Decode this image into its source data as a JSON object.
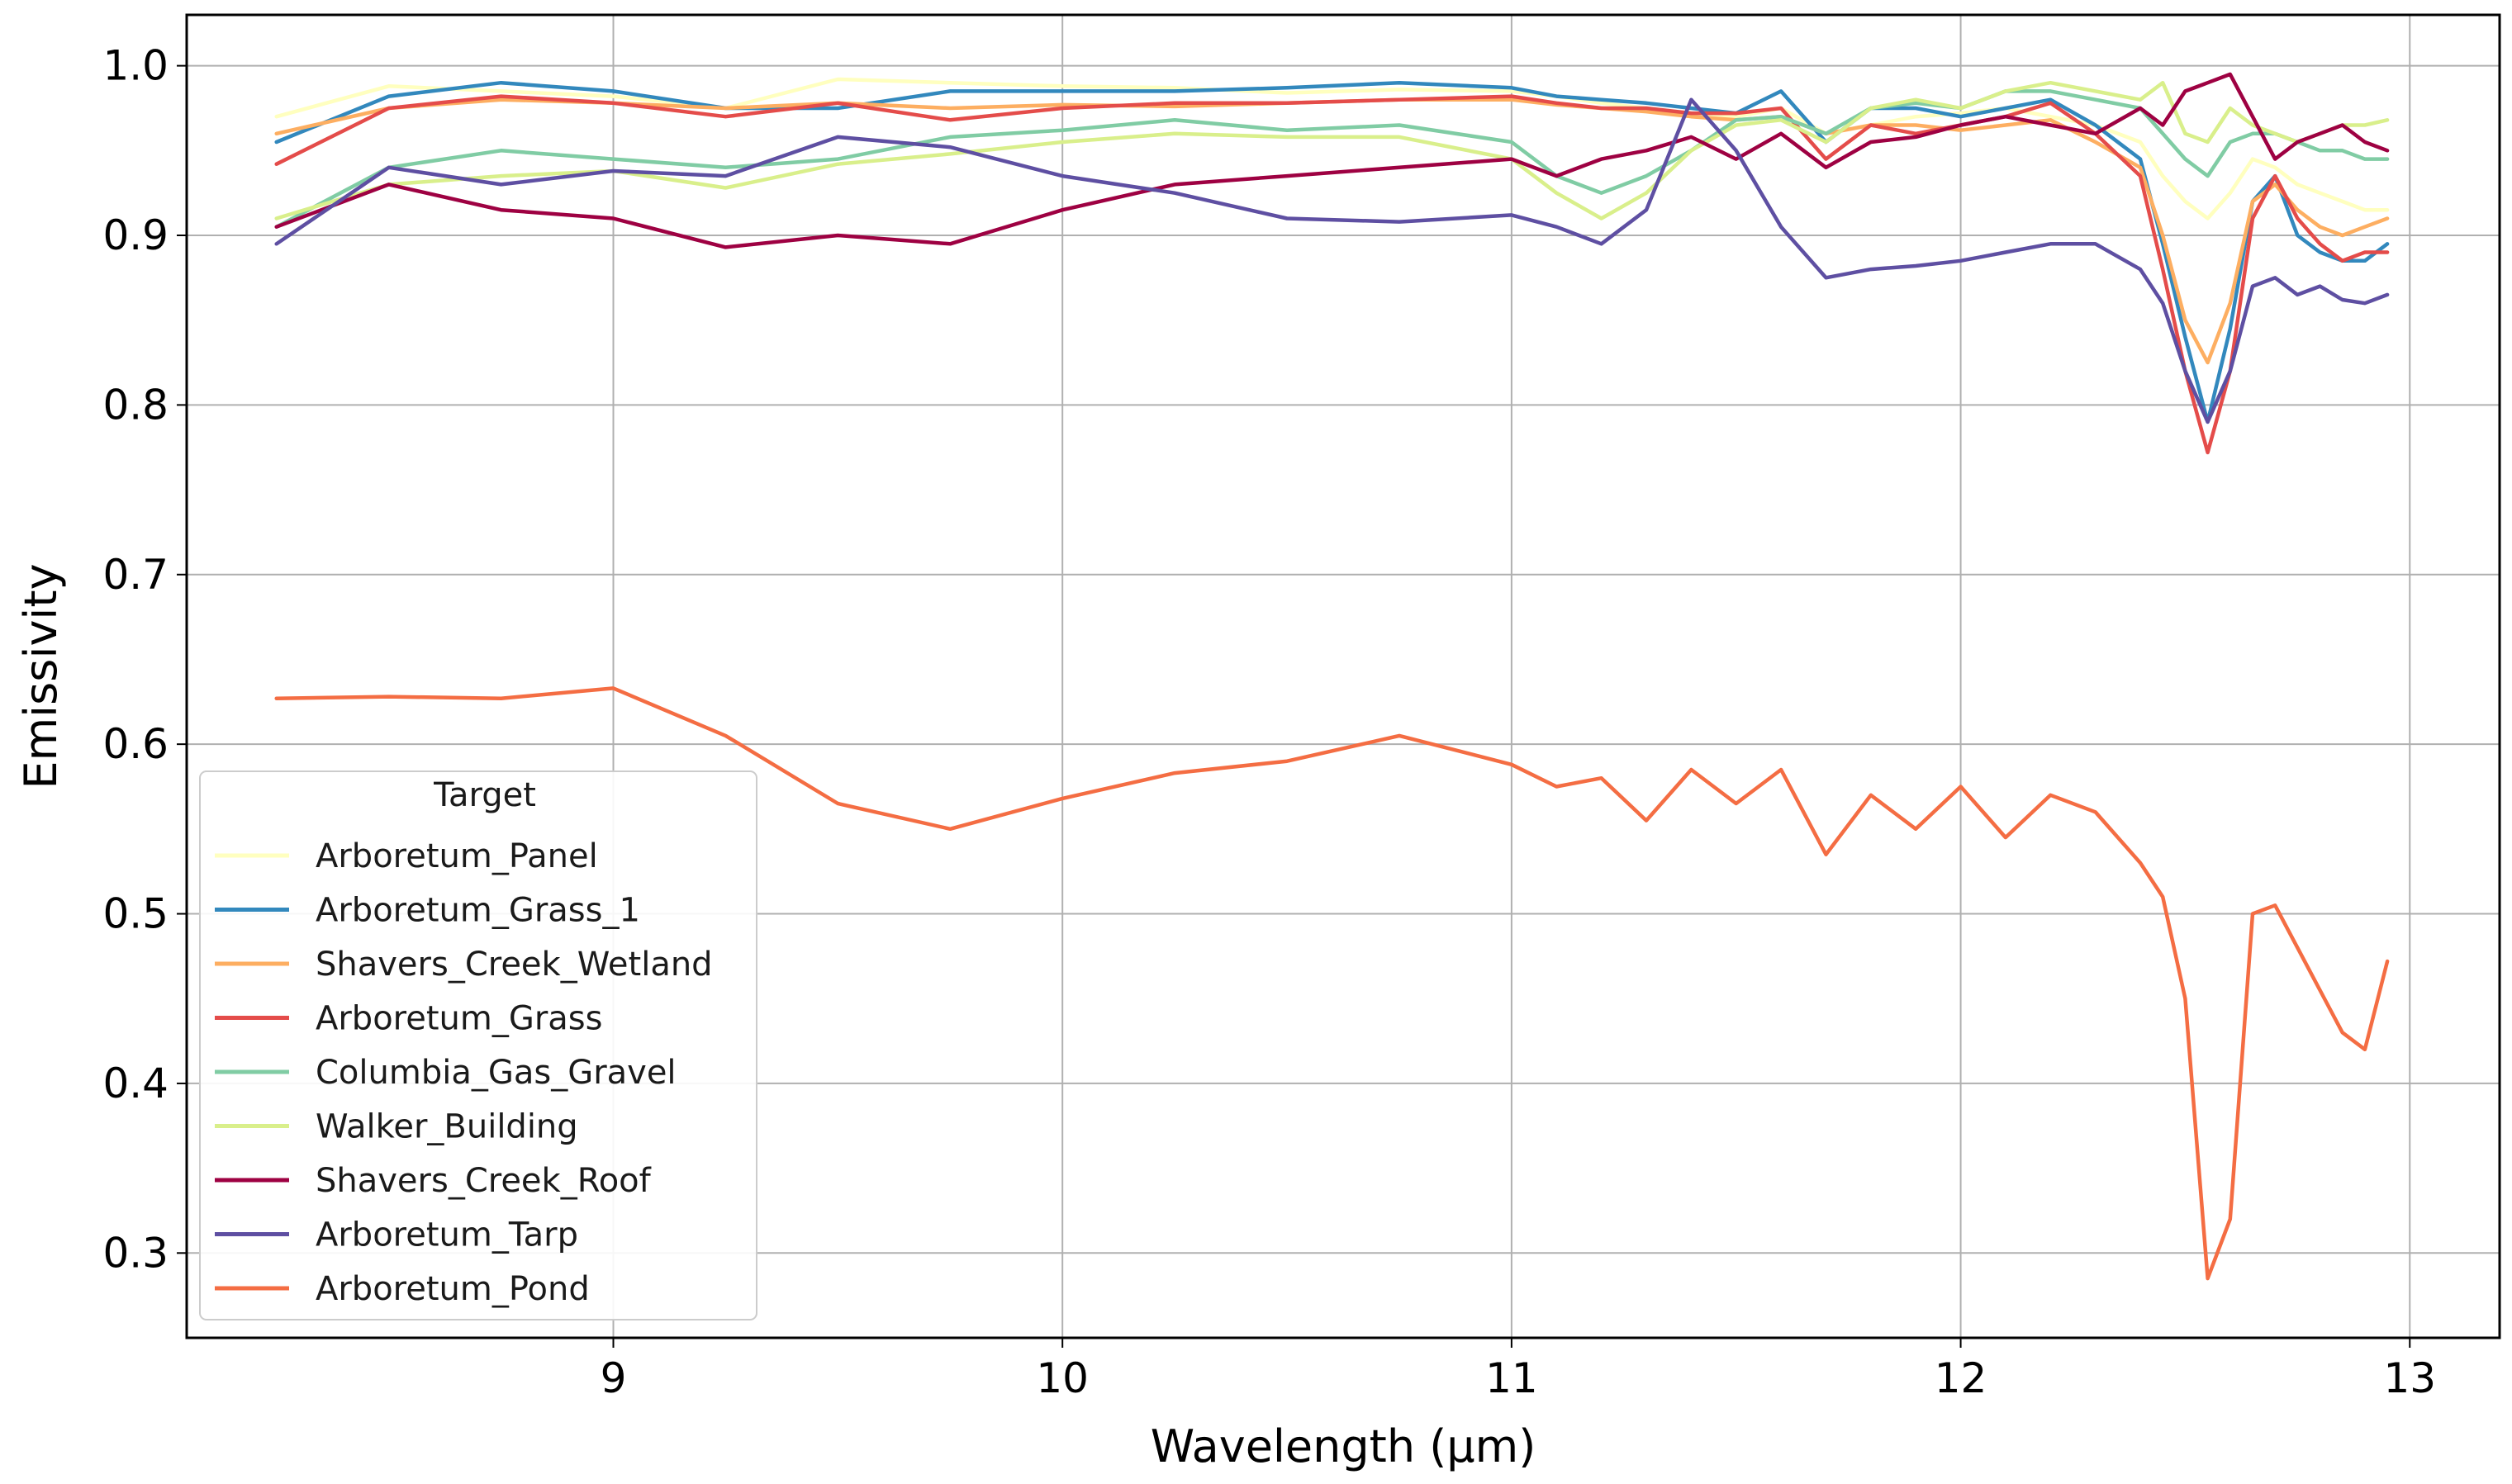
{
  "chart_data": {
    "type": "line",
    "title": "",
    "xlabel": "Wavelength (µm)",
    "ylabel": "Emissivity",
    "xlim": [
      8.05,
      13.2
    ],
    "ylim": [
      0.25,
      1.03
    ],
    "xticks": [
      9,
      10,
      11,
      12,
      13
    ],
    "yticks": [
      0.3,
      0.4,
      0.5,
      0.6,
      0.7,
      0.8,
      0.9,
      1.0
    ],
    "xtick_labels": [
      "9",
      "10",
      "11",
      "12",
      "13"
    ],
    "ytick_labels": [
      "0.3",
      "0.4",
      "0.5",
      "0.6",
      "0.7",
      "0.8",
      "0.9",
      "1.0"
    ],
    "grid": true,
    "legend": {
      "title": "Target",
      "location": "lower-left"
    },
    "x": [
      8.25,
      8.5,
      8.75,
      9.0,
      9.25,
      9.5,
      9.75,
      10.0,
      10.25,
      10.5,
      10.75,
      11.0,
      11.1,
      11.2,
      11.3,
      11.4,
      11.5,
      11.6,
      11.7,
      11.8,
      11.9,
      12.0,
      12.1,
      12.2,
      12.3,
      12.4,
      12.45,
      12.5,
      12.55,
      12.6,
      12.65,
      12.7,
      12.75,
      12.8,
      12.85,
      12.9,
      12.95
    ],
    "series": [
      {
        "name": "Arboretum_Panel",
        "color": "#ffffbf",
        "values": [
          0.97,
          0.988,
          0.985,
          0.982,
          0.975,
          0.992,
          0.99,
          0.988,
          0.987,
          0.984,
          0.986,
          0.985,
          0.982,
          0.978,
          0.975,
          0.972,
          0.97,
          0.975,
          0.96,
          0.965,
          0.97,
          0.972,
          0.975,
          0.97,
          0.965,
          0.955,
          0.935,
          0.92,
          0.91,
          0.925,
          0.945,
          0.94,
          0.93,
          0.925,
          0.92,
          0.915,
          0.915
        ]
      },
      {
        "name": "Arboretum_Grass_1",
        "color": "#3288bd",
        "values": [
          0.955,
          0.982,
          0.99,
          0.985,
          0.975,
          0.975,
          0.985,
          0.985,
          0.985,
          0.987,
          0.99,
          0.987,
          0.982,
          0.98,
          0.978,
          0.975,
          0.972,
          0.985,
          0.955,
          0.975,
          0.975,
          0.97,
          0.975,
          0.98,
          0.965,
          0.945,
          0.895,
          0.84,
          0.79,
          0.845,
          0.92,
          0.935,
          0.9,
          0.89,
          0.885,
          0.885,
          0.895
        ]
      },
      {
        "name": "Shavers_Creek_Wetland",
        "color": "#fdae61",
        "values": [
          0.96,
          0.975,
          0.98,
          0.978,
          0.975,
          0.978,
          0.975,
          0.977,
          0.976,
          0.978,
          0.98,
          0.98,
          0.977,
          0.975,
          0.973,
          0.97,
          0.968,
          0.97,
          0.96,
          0.965,
          0.965,
          0.962,
          0.965,
          0.968,
          0.955,
          0.94,
          0.9,
          0.85,
          0.825,
          0.86,
          0.92,
          0.93,
          0.915,
          0.905,
          0.9,
          0.905,
          0.91
        ]
      },
      {
        "name": "Arboretum_Grass",
        "color": "#e44c4a",
        "values": [
          0.942,
          0.975,
          0.982,
          0.978,
          0.97,
          0.978,
          0.968,
          0.975,
          0.978,
          0.978,
          0.98,
          0.982,
          0.978,
          0.975,
          0.975,
          0.972,
          0.972,
          0.975,
          0.945,
          0.965,
          0.96,
          0.965,
          0.97,
          0.978,
          0.96,
          0.935,
          0.88,
          0.82,
          0.772,
          0.82,
          0.91,
          0.935,
          0.91,
          0.895,
          0.885,
          0.89,
          0.89
        ]
      },
      {
        "name": "Columbia_Gas_Gravel",
        "color": "#80cca4",
        "values": [
          0.905,
          0.94,
          0.95,
          0.945,
          0.94,
          0.945,
          0.958,
          0.962,
          0.968,
          0.962,
          0.965,
          0.955,
          0.935,
          0.925,
          0.935,
          0.95,
          0.968,
          0.97,
          0.96,
          0.975,
          0.978,
          0.975,
          0.985,
          0.985,
          0.98,
          0.975,
          0.96,
          0.945,
          0.935,
          0.955,
          0.96,
          0.96,
          0.955,
          0.95,
          0.95,
          0.945,
          0.945
        ]
      },
      {
        "name": "Walker_Building",
        "color": "#d9ef8b",
        "values": [
          0.91,
          0.93,
          0.935,
          0.938,
          0.928,
          0.942,
          0.948,
          0.955,
          0.96,
          0.958,
          0.958,
          0.945,
          0.925,
          0.91,
          0.925,
          0.95,
          0.965,
          0.968,
          0.955,
          0.975,
          0.98,
          0.975,
          0.985,
          0.99,
          0.985,
          0.98,
          0.99,
          0.96,
          0.955,
          0.975,
          0.965,
          0.96,
          0.955,
          0.96,
          0.965,
          0.965,
          0.968
        ]
      },
      {
        "name": "Shavers_Creek_Roof",
        "color": "#9e0142",
        "values": [
          0.905,
          0.93,
          0.915,
          0.91,
          0.893,
          0.9,
          0.895,
          0.915,
          0.93,
          0.935,
          0.94,
          0.945,
          0.935,
          0.945,
          0.95,
          0.958,
          0.945,
          0.96,
          0.94,
          0.955,
          0.958,
          0.965,
          0.97,
          0.965,
          0.96,
          0.975,
          0.965,
          0.985,
          0.99,
          0.995,
          0.97,
          0.945,
          0.955,
          0.96,
          0.965,
          0.955,
          0.95
        ]
      },
      {
        "name": "Arboretum_Tarp",
        "color": "#5e4fa2",
        "values": [
          0.895,
          0.94,
          0.93,
          0.938,
          0.935,
          0.958,
          0.952,
          0.935,
          0.925,
          0.91,
          0.908,
          0.912,
          0.905,
          0.895,
          0.915,
          0.98,
          0.95,
          0.905,
          0.875,
          0.88,
          0.882,
          0.885,
          0.89,
          0.895,
          0.895,
          0.88,
          0.86,
          0.82,
          0.79,
          0.82,
          0.87,
          0.875,
          0.865,
          0.87,
          0.862,
          0.86,
          0.865
        ]
      },
      {
        "name": "Arboretum_Pond",
        "color": "#f46d43",
        "values": [
          0.627,
          0.628,
          0.627,
          0.633,
          0.605,
          0.565,
          0.55,
          0.568,
          0.583,
          0.59,
          0.605,
          0.588,
          0.575,
          0.58,
          0.555,
          0.585,
          0.565,
          0.585,
          0.535,
          0.57,
          0.55,
          0.575,
          0.545,
          0.57,
          0.56,
          0.53,
          0.51,
          0.45,
          0.285,
          0.32,
          0.5,
          0.505,
          0.48,
          0.455,
          0.43,
          0.42,
          0.472
        ]
      }
    ]
  }
}
